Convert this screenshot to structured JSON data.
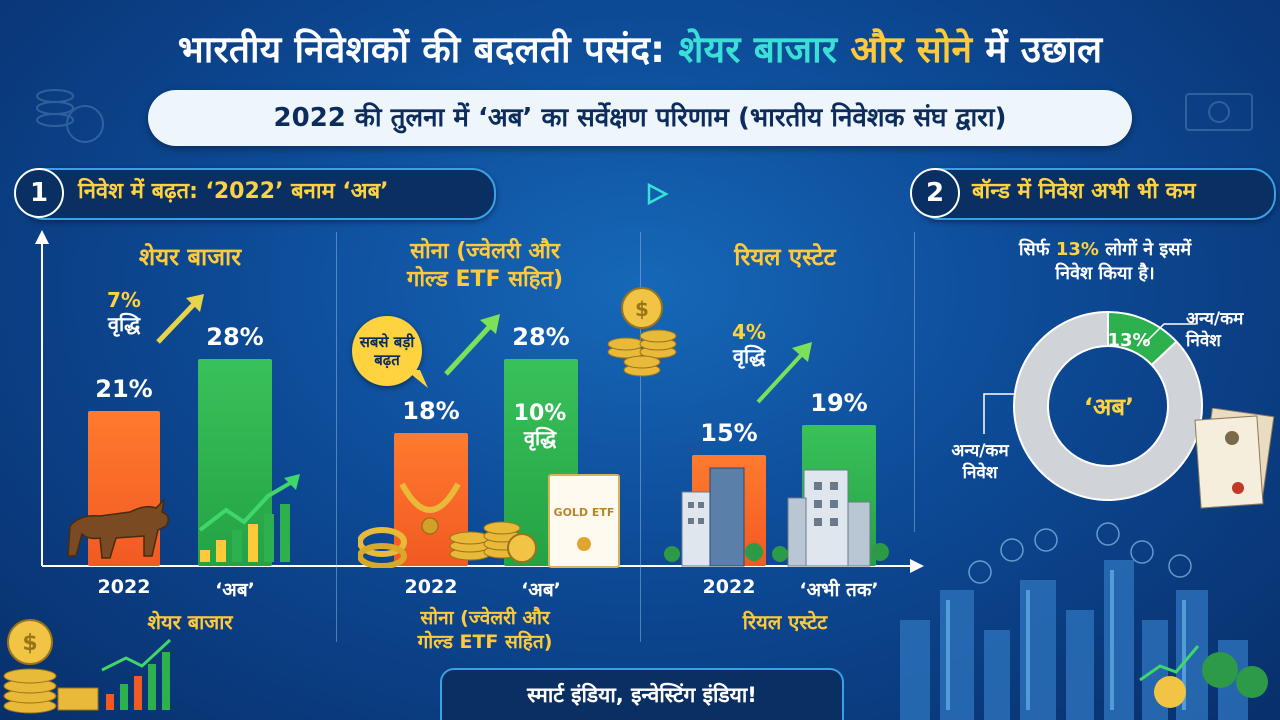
{
  "title": {
    "part1": "भारतीय निवेशकों की बदलती पसंद:",
    "part2": "शेयर बाजार",
    "part3": "और सोने",
    "part4": "में उछाल"
  },
  "subtitle": "2022 की तुलना में ‘अब’ का सर्वेक्षण परिणाम (भारतीय निवेशक संघ द्वारा)",
  "section1": {
    "number": "1",
    "label": "निवेश में बढ़त: ‘2022’ बनाम ‘अब’"
  },
  "section2": {
    "number": "2",
    "label": "बॉन्ड में निवेश अभी भी कम"
  },
  "colors": {
    "old": "#f15a22",
    "now": "#2db14f",
    "accent": "#ffc93a",
    "ring": "#d0d4d8"
  },
  "chart_data": [
    {
      "type": "bar",
      "categories": [
        "शेयर बाजार",
        "सोना (ज्वेलरी और गोल्ड ETF सहित)",
        "रियल एस्टेट"
      ],
      "category_titles": [
        "शेयर बाजार",
        "सोना (ज्वेलरी और\nगोल्ड ETF सहित)",
        "रियल एस्टेट"
      ],
      "series": [
        {
          "name": "2022",
          "values": [
            21,
            18,
            15
          ]
        },
        {
          "name": "अब",
          "values": [
            28,
            28,
            19
          ]
        }
      ],
      "unit": "%",
      "value_labels_old": [
        "21%",
        "18%",
        "15%"
      ],
      "value_labels_now": [
        "28%",
        "28%",
        "19%"
      ],
      "x_labels_old": [
        "2022",
        "2022",
        "2022"
      ],
      "x_labels_now": [
        "‘अब’",
        "‘अब’",
        "‘अभी तक’"
      ],
      "growth": [
        {
          "value": "7%",
          "label": "वृद्धि"
        },
        {
          "value": "10%",
          "label": "वृद्धि"
        },
        {
          "value": "4%",
          "label": "वृद्धि"
        }
      ],
      "annotation": "सबसे बड़ी बढ़त",
      "bottom_labels": [
        "शेयर बाजार",
        "सोना (ज्वेलरी और\nगोल्ड ETF सहित)",
        "रियल एस्टेट"
      ],
      "ylim": [
        0,
        32
      ]
    },
    {
      "type": "pie",
      "slices": [
        {
          "name": "अन्य/कम निवेश",
          "value": 13,
          "label": "13%"
        },
        {
          "name": "अन्य/कम निवेश",
          "value": 87,
          "label": ""
        }
      ],
      "center_label": "‘अब’",
      "caption": "सिर्फ 13% लोगों ने इसमें निवेश किया है।",
      "caption_line1": "सिर्फ ",
      "caption_pct": "13%",
      "caption_line1_end": " लोगों ने इसमें",
      "caption_line2": "निवेश किया है।",
      "legend_right": "अन्य/कम\nनिवेश",
      "legend_left": "अन्य/कम\nनिवेश"
    }
  ],
  "etf_card": "GOLD ETF",
  "footer": "स्मार्ट इंडिया, इन्वेस्टिंग इंडिया!"
}
